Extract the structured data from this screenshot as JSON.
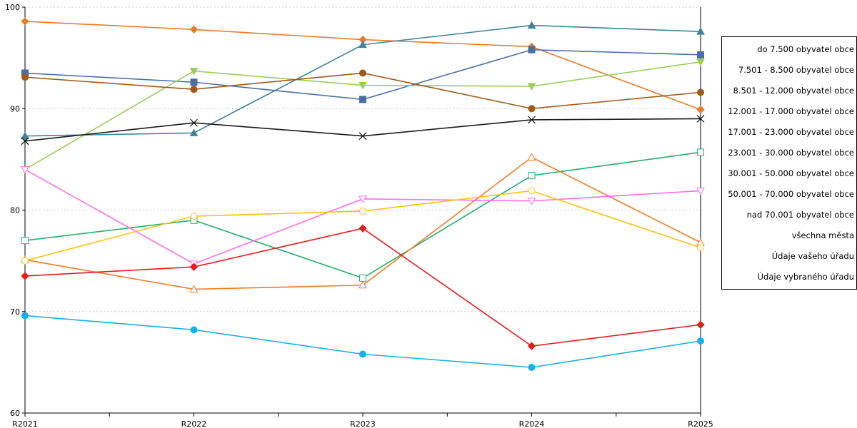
{
  "chart_data": {
    "type": "line",
    "title": "",
    "xlabel": "",
    "ylabel": "",
    "categories": [
      "R2021",
      "R2022",
      "R2023",
      "R2024",
      "R2025"
    ],
    "ylim": [
      60,
      100
    ],
    "yticks": [
      60,
      70,
      80,
      90,
      100
    ],
    "grid": true,
    "legend_position": "right",
    "series": [
      {
        "name": "do 7.500 obyvatel obce",
        "color": "#E87D2B",
        "marker": "diamond",
        "values": [
          98.6,
          97.8,
          96.8,
          96.1,
          89.9
        ]
      },
      {
        "name": "7.501 - 8.500 obyvatel obce",
        "color": "#3E8498",
        "marker": "triangle-up",
        "values": [
          87.3,
          87.6,
          96.3,
          98.2,
          97.6
        ]
      },
      {
        "name": "8.501 - 12.000 obyvatel obce",
        "color": "#4A6FA5",
        "marker": "square",
        "values": [
          93.5,
          92.6,
          90.9,
          95.8,
          95.3
        ]
      },
      {
        "name": "12.001 - 17.000 obyvatel obce",
        "color": "#9ACD5B",
        "marker": "triangle-down",
        "values": [
          84.0,
          93.7,
          92.3,
          92.2,
          94.6
        ]
      },
      {
        "name": "17.001 - 23.000 obyvatel obce",
        "color": "#9E5A1A",
        "marker": "circle",
        "values": [
          93.1,
          91.9,
          93.5,
          90.0,
          91.6
        ]
      },
      {
        "name": "23.001 - 30.000 obyvatel obce",
        "color": "#22B06E",
        "marker": "square-open",
        "values": [
          77.0,
          79.0,
          73.3,
          83.4,
          85.7
        ]
      },
      {
        "name": "30.001 - 50.000 obyvatel obce",
        "color": "#F47B20",
        "marker": "triangle-up-open",
        "values": [
          75.1,
          72.2,
          72.6,
          85.2,
          76.8
        ]
      },
      {
        "name": "50.001 - 70.000 obyvatel obce",
        "color": "#FF6FE8",
        "marker": "triangle-down-open",
        "values": [
          84.0,
          74.7,
          81.1,
          80.9,
          81.9
        ]
      },
      {
        "name": "nad 70.001 obyvatel obce",
        "color": "#FFC20E",
        "marker": "circle-open",
        "values": [
          75.0,
          79.4,
          79.9,
          81.9,
          76.3
        ]
      },
      {
        "name": "všechna města",
        "color": "#1B1B1B",
        "marker": "x",
        "values": [
          86.8,
          88.6,
          87.3,
          88.9,
          89.0
        ]
      },
      {
        "name": "Údaje vašeho úřadu",
        "color": "#E81C1C",
        "marker": "diamond",
        "values": [
          73.5,
          74.4,
          78.2,
          66.6,
          68.7
        ]
      },
      {
        "name": "Údaje vybraného úřadu",
        "color": "#1AAFE6",
        "marker": "circle",
        "values": [
          69.6,
          68.2,
          65.8,
          64.5,
          67.1
        ]
      }
    ]
  }
}
